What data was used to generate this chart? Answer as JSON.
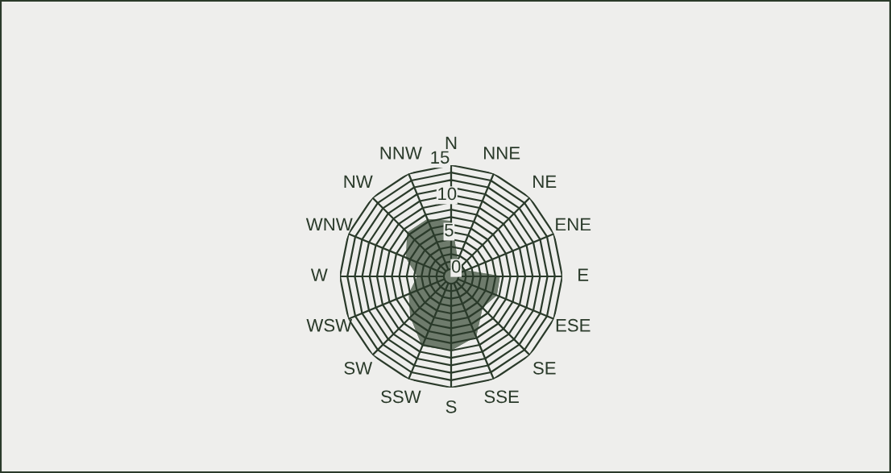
{
  "chart_data": {
    "type": "radar",
    "categories": [
      "N",
      "NNE",
      "NE",
      "ENE",
      "E",
      "ESE",
      "SE",
      "SSE",
      "S",
      "SSW",
      "SW",
      "WSW",
      "W",
      "WNW",
      "NW",
      "NNW"
    ],
    "series": [
      {
        "color": "#6e7b6c",
        "values": [
          7.4,
          2.2,
          2.0,
          2.0,
          6.5,
          6.6,
          5.9,
          8.7,
          9.9,
          10.1,
          7.7,
          6.1,
          4.5,
          6.5,
          8.3,
          8.3
        ]
      }
    ],
    "ylim": [
      0,
      15
    ],
    "yticks": [
      0,
      5,
      10,
      15
    ],
    "grid": true
  }
}
